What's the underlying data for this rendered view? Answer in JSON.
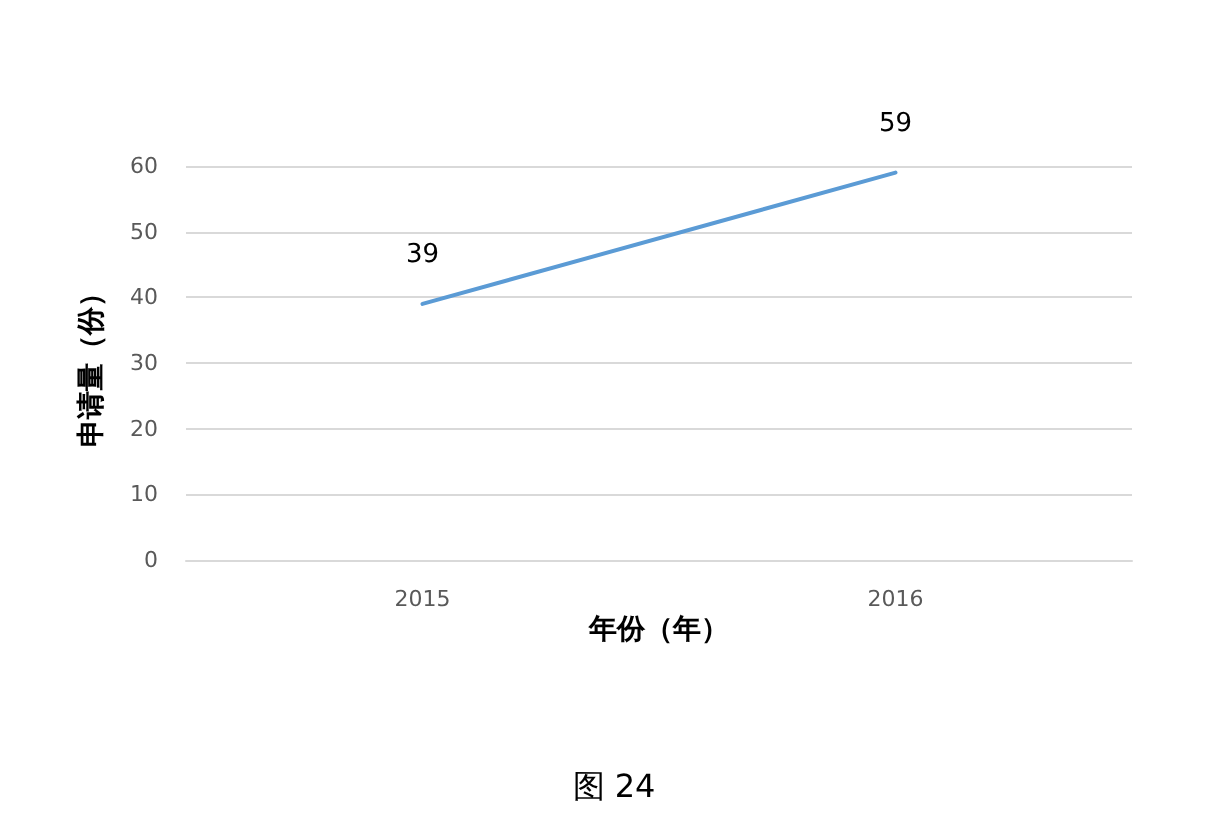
{
  "chart_data": {
    "type": "line",
    "xlabel": "年份（年）",
    "ylabel": "申请量（份）",
    "categories": [
      "2015",
      "2016"
    ],
    "series": [
      {
        "color": "#5b9bd5",
        "values": [
          39,
          59
        ]
      }
    ],
    "ylim": [
      0,
      60
    ],
    "yticks": [
      0,
      10,
      20,
      30,
      40,
      50,
      60
    ],
    "grid": "y",
    "data_labels": true,
    "marker": "none",
    "line_style": "solid",
    "annotations": [
      "图 24"
    ]
  }
}
